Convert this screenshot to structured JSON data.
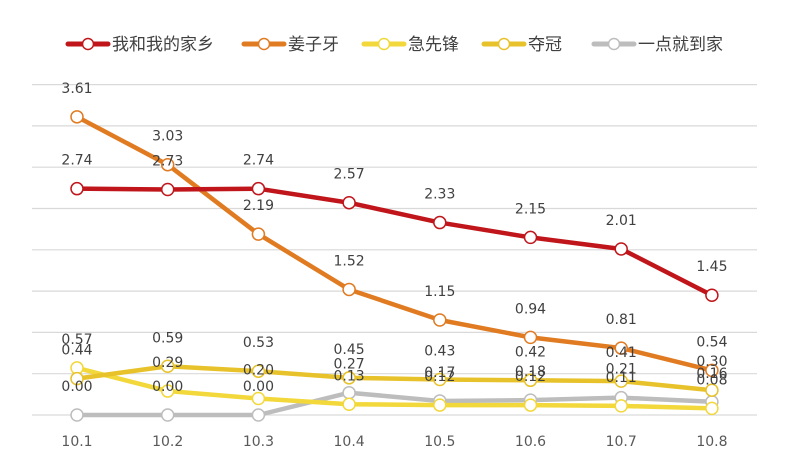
{
  "chart_data": {
    "type": "line",
    "title": "",
    "xlabel": "",
    "ylabel": "",
    "ylim": [
      0,
      4
    ],
    "grid": true,
    "legend_position": "top",
    "categories": [
      "10.1",
      "10.2",
      "10.3",
      "10.4",
      "10.5",
      "10.6",
      "10.7",
      "10.8"
    ],
    "series": [
      {
        "name": "我和我的家乡",
        "color": "#c0161b",
        "values": [
          2.74,
          2.73,
          2.74,
          2.57,
          2.33,
          2.15,
          2.01,
          1.45
        ]
      },
      {
        "name": "姜子牙",
        "color": "#e07b22",
        "values": [
          3.61,
          3.03,
          2.19,
          1.52,
          1.15,
          0.94,
          0.81,
          0.54
        ]
      },
      {
        "name": "急先锋",
        "color": "#f2d83a",
        "values": [
          0.57,
          0.29,
          0.2,
          0.13,
          0.12,
          0.12,
          0.11,
          0.08
        ]
      },
      {
        "name": "夺冠",
        "color": "#e8c22a",
        "values": [
          0.44,
          0.59,
          0.53,
          0.45,
          0.43,
          0.42,
          0.41,
          0.3
        ]
      },
      {
        "name": "一点就到家",
        "color": "#bdbdbd",
        "values": [
          0.0,
          0.0,
          0.0,
          0.27,
          0.17,
          0.18,
          0.21,
          0.16
        ]
      }
    ]
  }
}
